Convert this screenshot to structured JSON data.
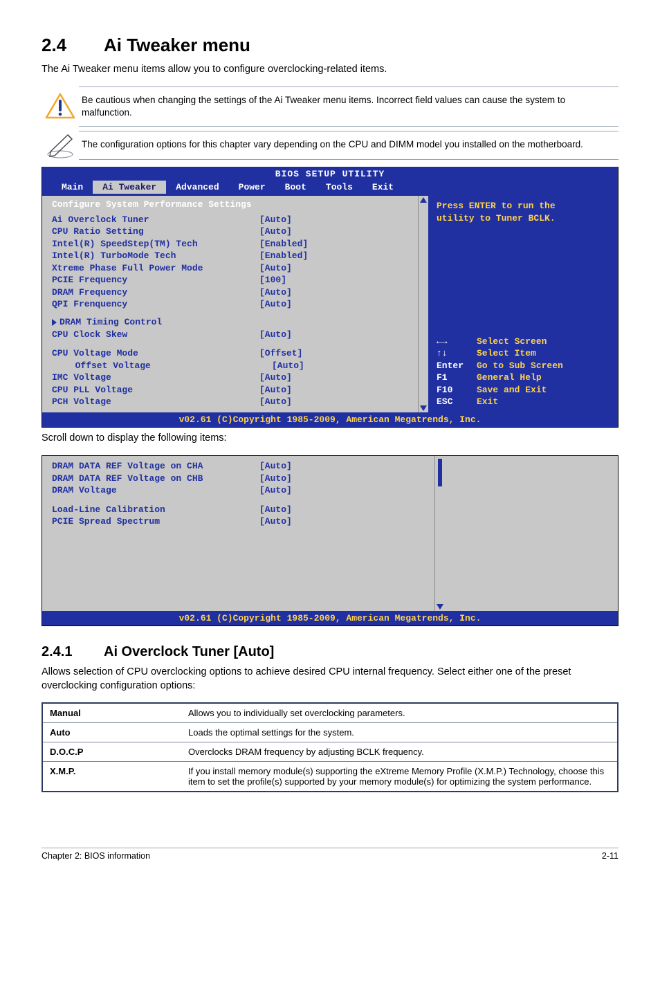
{
  "heading": {
    "num": "2.4",
    "title": "Ai Tweaker menu"
  },
  "intro": "The Ai Tweaker menu items allow you to configure overclocking-related items.",
  "notes": {
    "caution": "Be cautious when changing the settings of the Ai Tweaker menu items. Incorrect field values can cause the system to malfunction.",
    "info": "The configuration options for this chapter vary depending on the CPU and DIMM model you installed on the motherboard."
  },
  "bios": {
    "title": "BIOS SETUP UTILITY",
    "tabs": [
      "Main",
      "Ai Tweaker",
      "Advanced",
      "Power",
      "Boot",
      "Tools",
      "Exit"
    ],
    "active_tab_index": 1,
    "section_header": "Configure System Performance Settings",
    "settings": [
      {
        "label": "Ai Overclock Tuner",
        "value": "[Auto]",
        "indent": 0
      },
      {
        "label": "CPU Ratio Setting",
        "value": "[Auto]",
        "indent": 0
      },
      {
        "label": "Intel(R) SpeedStep(TM) Tech",
        "value": "[Enabled]",
        "indent": 0
      },
      {
        "label": "Intel(R) TurboMode Tech",
        "value": "[Enabled]",
        "indent": 0
      },
      {
        "label": "Xtreme Phase Full Power Mode",
        "value": "[Auto]",
        "indent": 0
      },
      {
        "label": "PCIE Frequency",
        "value": "[100]",
        "indent": 0
      },
      {
        "label": "DRAM Frequency",
        "value": "[Auto]",
        "indent": 0
      },
      {
        "label": "QPI Frenquency",
        "value": "[Auto]",
        "indent": 0
      }
    ],
    "dram_group_label": "DRAM Timing Control",
    "dram_group": [
      {
        "label": "CPU Clock Skew",
        "value": "[Auto]",
        "indent": 0
      }
    ],
    "voltage_group": [
      {
        "label": "CPU Voltage Mode",
        "value": "[Offset]",
        "indent": 0
      },
      {
        "label": "Offset Voltage",
        "value": "[Auto]",
        "indent": 1
      },
      {
        "label": "IMC Voltage",
        "value": "[Auto]",
        "indent": 0
      },
      {
        "label": "CPU PLL Voltage",
        "value": "[Auto]",
        "indent": 0
      },
      {
        "label": "PCH Voltage",
        "value": "[Auto]",
        "indent": 0
      }
    ],
    "help_top": [
      "Press ENTER to run the",
      "utility to Tuner BCLK."
    ],
    "nav": [
      {
        "key": "←→",
        "desc": "Select Screen"
      },
      {
        "key": "↑↓",
        "desc": "Select Item"
      },
      {
        "key": "Enter",
        "desc": "Go to Sub Screen"
      },
      {
        "key": "F1",
        "desc": "General Help"
      },
      {
        "key": "F10",
        "desc": "Save and Exit"
      },
      {
        "key": "ESC",
        "desc": "Exit"
      }
    ],
    "footer": "v02.61 (C)Copyright 1985-2009, American Megatrends, Inc."
  },
  "scroll_hint": "Scroll down to display the following items:",
  "bios2": {
    "settings": [
      {
        "label": "DRAM DATA REF Voltage on CHA",
        "value": "[Auto]"
      },
      {
        "label": "DRAM DATA REF Voltage on CHB",
        "value": "[Auto]"
      },
      {
        "label": "DRAM Voltage",
        "value": "[Auto]"
      }
    ],
    "settings2": [
      {
        "label": "Load-Line Calibration",
        "value": "[Auto]"
      },
      {
        "label": "PCIE Spread Spectrum",
        "value": "[Auto]"
      }
    ],
    "footer": "v02.61 (C)Copyright 1985-2009, American Megatrends, Inc."
  },
  "subheading": {
    "num": "2.4.1",
    "title": "Ai Overclock Tuner [Auto]"
  },
  "subintro": "Allows selection of CPU overclocking options to achieve desired CPU internal frequency. Select either one of the preset overclocking configuration options:",
  "options": [
    {
      "key": "Manual",
      "desc": "Allows you to individually set overclocking parameters."
    },
    {
      "key": "Auto",
      "desc": "Loads the optimal settings for the system."
    },
    {
      "key": "D.O.C.P",
      "desc": "Overclocks DRAM frequency by adjusting BCLK frequency."
    },
    {
      "key": "X.M.P.",
      "desc": "If you install memory module(s) supporting the eXtreme Memory Profile (X.M.P.) Technology, choose this item to set the profile(s) supported by your memory module(s) for optimizing the system performance."
    }
  ],
  "page_footer": {
    "left": "Chapter 2: BIOS information",
    "right": "2-11"
  },
  "colors": {
    "bios_blue": "#2030a0",
    "bios_grey": "#c8c8c8",
    "accent_yellow": "#ffd24a",
    "thin_rule": "#9aa3b0",
    "table_border": "#2b3a5e"
  }
}
